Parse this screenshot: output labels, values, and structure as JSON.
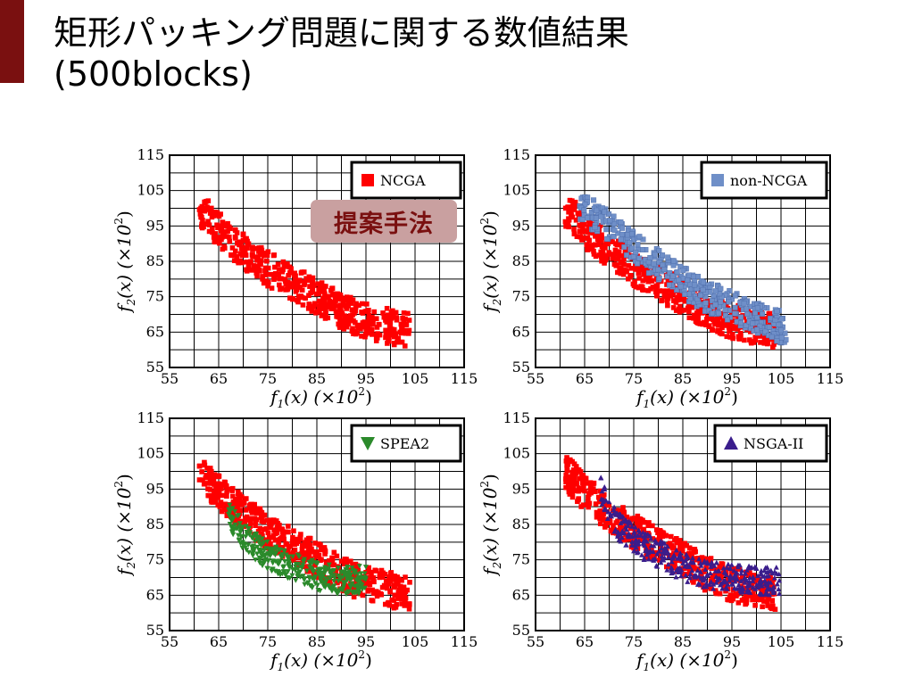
{
  "slide": {
    "title_line1": "矩形パッキング問題に関する数値結果",
    "title_line2": "(500blocks)",
    "badge": "提案手法"
  },
  "axes": {
    "x_label_main": "f",
    "x_label_sub": "1",
    "x_label_tail": "(x) (×10",
    "x_label_exp": "2",
    "y_label_main": "f",
    "y_label_sub": "2",
    "y_label_tail": "(x) (×10",
    "y_label_exp": "2",
    "ticks": [
      "55",
      "65",
      "75",
      "85",
      "95",
      "105",
      "115"
    ]
  },
  "colors": {
    "ncga": "#ff0000",
    "non_ncga": "#6f8fc8",
    "spea2": "#2b8a2b",
    "nsga2": "#3a1d8c",
    "accent": "#7a1010",
    "badge_bg": "#c9a0a0"
  },
  "chart_data": [
    {
      "type": "scatter",
      "title": "",
      "xlabel": "f1(x) (×10^2)",
      "ylabel": "f2(x) (×10^2)",
      "xlim": [
        55,
        115
      ],
      "ylim": [
        55,
        115
      ],
      "grid": true,
      "legend": "NCGA",
      "legend_position": "top-right",
      "series": [
        {
          "name": "NCGA",
          "marker": "square",
          "color": "#ff0000",
          "centerline": [
            [
              61,
              100
            ],
            [
              65,
              94
            ],
            [
              70,
              88
            ],
            [
              75,
              83
            ],
            [
              80,
              79
            ],
            [
              85,
              75
            ],
            [
              90,
              71
            ],
            [
              95,
              68
            ],
            [
              100,
              66.5
            ],
            [
              104,
              65.5
            ]
          ],
          "spread_y": 5
        }
      ]
    },
    {
      "type": "scatter",
      "title": "",
      "xlabel": "f1(x) (×10^2)",
      "ylabel": "f2(x) (×10^2)",
      "xlim": [
        55,
        115
      ],
      "ylim": [
        55,
        115
      ],
      "grid": true,
      "legend": "non-NCGA",
      "legend_position": "top-right",
      "series": [
        {
          "name": "NCGA",
          "marker": "square",
          "color": "#ff0000",
          "centerline": [
            [
              61,
              100
            ],
            [
              65,
              94
            ],
            [
              70,
              88
            ],
            [
              75,
              83
            ],
            [
              80,
              79
            ],
            [
              85,
              75
            ],
            [
              90,
              71
            ],
            [
              95,
              68
            ],
            [
              100,
              66.5
            ],
            [
              104,
              65.5
            ]
          ],
          "spread_y": 5
        },
        {
          "name": "non-NCGA",
          "marker": "square",
          "color": "#6f8fc8",
          "centerline": [
            [
              64,
              101
            ],
            [
              68,
              97
            ],
            [
              72,
              92
            ],
            [
              76,
              88
            ],
            [
              80,
              84
            ],
            [
              85,
              79
            ],
            [
              90,
              75
            ],
            [
              95,
              72
            ],
            [
              100,
              69
            ],
            [
              106,
              66
            ]
          ],
          "spread_y": 4.5
        }
      ]
    },
    {
      "type": "scatter",
      "title": "",
      "xlabel": "f1(x) (×10^2)",
      "ylabel": "f2(x) (×10^2)",
      "xlim": [
        55,
        115
      ],
      "ylim": [
        55,
        115
      ],
      "grid": true,
      "legend": "SPEA2",
      "legend_position": "top-right",
      "series": [
        {
          "name": "NCGA",
          "marker": "square",
          "color": "#ff0000",
          "centerline": [
            [
              61,
              100
            ],
            [
              65,
              94
            ],
            [
              70,
              88
            ],
            [
              75,
              83
            ],
            [
              80,
              79
            ],
            [
              85,
              75
            ],
            [
              90,
              71
            ],
            [
              95,
              68
            ],
            [
              100,
              66.5
            ],
            [
              104,
              65.5
            ]
          ],
          "spread_y": 5
        },
        {
          "name": "SPEA2",
          "marker": "triangle-down",
          "color": "#2b8a2b",
          "centerline": [
            [
              67,
              88
            ],
            [
              70,
              82
            ],
            [
              74,
              77
            ],
            [
              78,
              74
            ],
            [
              82,
              72
            ],
            [
              86,
              70
            ],
            [
              90,
              69
            ],
            [
              95,
              69.5
            ]
          ],
          "spread_y": 4
        }
      ]
    },
    {
      "type": "scatter",
      "title": "",
      "xlabel": "f1(x) (×10^2)",
      "ylabel": "f2(x) (×10^2)",
      "xlim": [
        55,
        115
      ],
      "ylim": [
        55,
        115
      ],
      "grid": true,
      "legend": "NSGA-II",
      "legend_position": "top-right",
      "series": [
        {
          "name": "NCGA",
          "marker": "square",
          "color": "#ff0000",
          "centerline": [
            [
              61,
              100
            ],
            [
              65,
              94
            ],
            [
              70,
              88
            ],
            [
              75,
              83
            ],
            [
              80,
              79
            ],
            [
              85,
              75
            ],
            [
              90,
              71
            ],
            [
              95,
              68
            ],
            [
              100,
              66.5
            ],
            [
              104,
              65.5
            ]
          ],
          "spread_y": 5
        },
        {
          "name": "NSGA-II",
          "marker": "triangle-up",
          "color": "#3a1d8c",
          "centerline": [
            [
              68,
              96
            ],
            [
              70,
              88
            ],
            [
              73,
              83
            ],
            [
              77,
              79
            ],
            [
              81,
              76
            ],
            [
              85,
              73
            ],
            [
              90,
              71
            ],
            [
              95,
              70
            ],
            [
              100,
              69
            ],
            [
              105,
              69
            ]
          ],
          "spread_y": 4
        }
      ]
    }
  ]
}
